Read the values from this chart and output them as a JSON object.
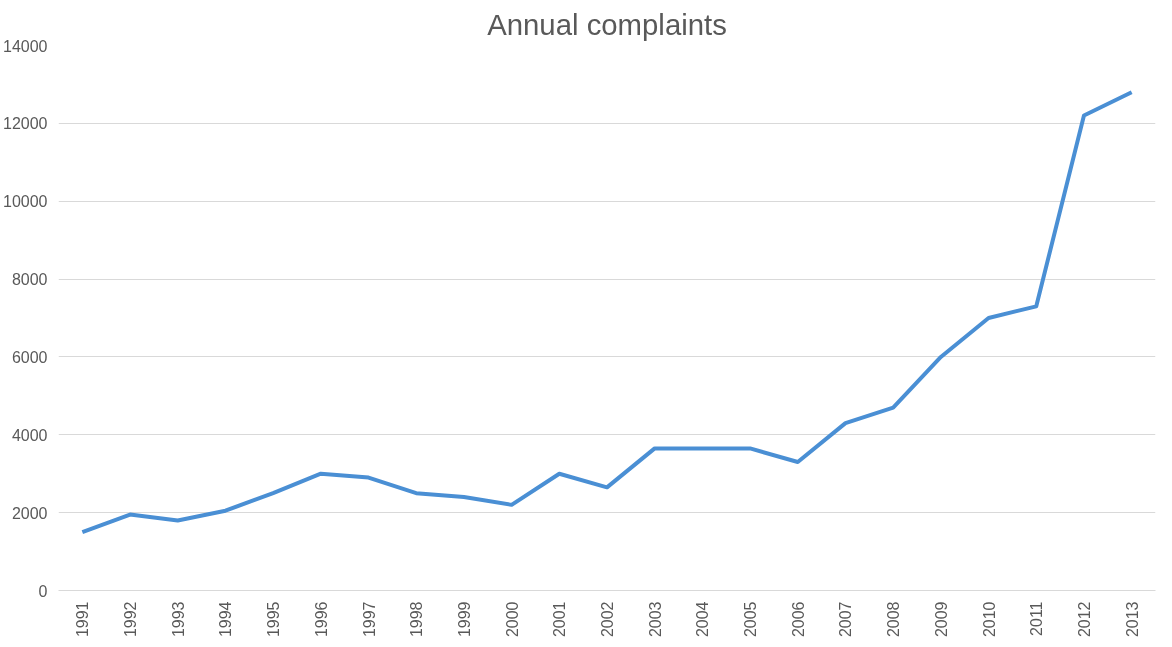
{
  "chart_data": {
    "type": "line",
    "title": "Annual complaints",
    "categories": [
      "1991",
      "1992",
      "1993",
      "1994",
      "1995",
      "1996",
      "1997",
      "1998",
      "1999",
      "2000",
      "2001",
      "2002",
      "2003",
      "2004",
      "2005",
      "2006",
      "2007",
      "2008",
      "2009",
      "2010",
      "2011",
      "2012",
      "2013"
    ],
    "series": [
      {
        "color": "#4a8fd4",
        "values": [
          1500,
          1950,
          1800,
          2050,
          2500,
          3000,
          2900,
          2500,
          2400,
          2200,
          3000,
          2650,
          3650,
          3650,
          3650,
          3300,
          4300,
          4700,
          6000,
          7000,
          7300,
          12200,
          12800
        ]
      }
    ],
    "ylim": [
      0,
      14000
    ],
    "yticks": [
      0,
      2000,
      4000,
      6000,
      8000,
      10000,
      12000,
      14000
    ],
    "grid": "y",
    "marker": "none",
    "line_style": "solid"
  }
}
